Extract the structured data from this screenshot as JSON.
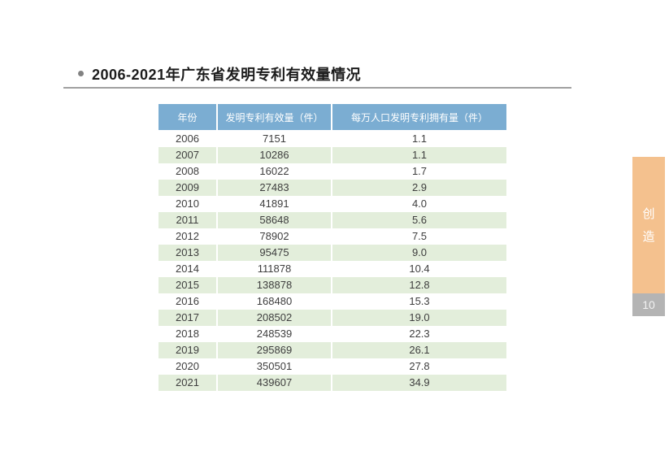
{
  "page": {
    "title": "2006-2021年广东省发明专利有效量情况"
  },
  "table": {
    "headers": [
      "年份",
      "发明专利有效量（件）",
      "每万人口发明专利拥有量（件）"
    ],
    "rows": [
      [
        "2006",
        "7151",
        "1.1"
      ],
      [
        "2007",
        "10286",
        "1.1"
      ],
      [
        "2008",
        "16022",
        "1.7"
      ],
      [
        "2009",
        "27483",
        "2.9"
      ],
      [
        "2010",
        "41891",
        "4.0"
      ],
      [
        "2011",
        "58648",
        "5.6"
      ],
      [
        "2012",
        "78902",
        "7.5"
      ],
      [
        "2013",
        "95475",
        "9.0"
      ],
      [
        "2014",
        "111878",
        "10.4"
      ],
      [
        "2015",
        "138878",
        "12.8"
      ],
      [
        "2016",
        "168480",
        "15.3"
      ],
      [
        "2017",
        "208502",
        "19.0"
      ],
      [
        "2018",
        "248539",
        "22.3"
      ],
      [
        "2019",
        "295869",
        "26.1"
      ],
      [
        "2020",
        "350501",
        "27.8"
      ],
      [
        "2021",
        "439607",
        "34.9"
      ]
    ]
  },
  "sidebar": {
    "tab_label_chars": [
      "创",
      "造"
    ],
    "page_number": "10"
  },
  "colors": {
    "header_bg": "#7badd2",
    "row_alt_bg": "#e3eedb",
    "sidebar_tab_bg": "#f4c18e",
    "page_badge_bg": "#b4b4b4",
    "divider": "#a0a0a0"
  }
}
